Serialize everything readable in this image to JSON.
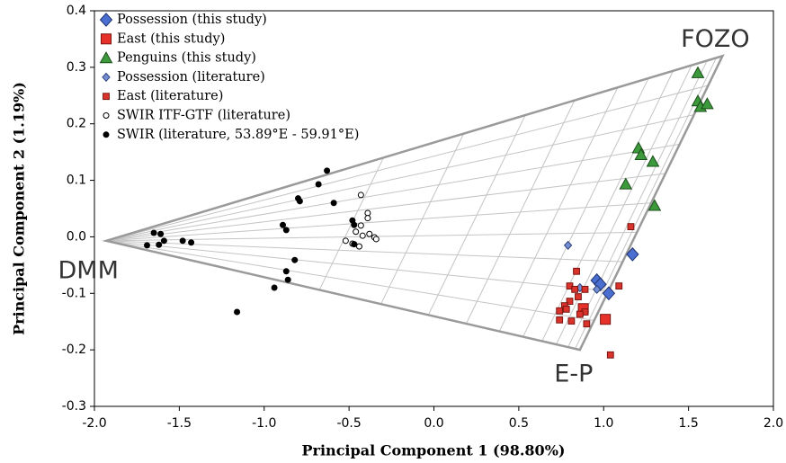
{
  "chart_data": {
    "type": "scatter",
    "xlabel": "Principal Component 1 (98.80%)",
    "ylabel": "Principal Component 2 (1.19%)",
    "xlim": [
      -2.0,
      2.0
    ],
    "ylim": [
      -0.3,
      0.4
    ],
    "xticks": [
      {
        "value": -2.0,
        "label": "-2.0"
      },
      -1.5,
      {
        "value": -1.0,
        "label": "-1.0"
      },
      -0.5,
      {
        "value": 0,
        "label": "0.0"
      },
      0.5,
      {
        "value": 1.0,
        "label": "1.0"
      },
      1.5,
      {
        "value": 2.0,
        "label": "2.0"
      }
    ],
    "yticks": [
      -0.3,
      -0.2,
      -0.1,
      {
        "value": 0,
        "label": "0.0"
      },
      0.1,
      0.2,
      0.3,
      0.4
    ],
    "legend": "upper left",
    "mixing_triangle": {
      "vertices": [
        {
          "label": "DMM",
          "x": -1.93,
          "y": -0.007
        },
        {
          "label": "FOZO",
          "x": 1.7,
          "y": 0.32
        },
        {
          "label": "E-P",
          "x": 0.86,
          "y": -0.2
        }
      ]
    },
    "series": [
      {
        "name": "Possession (this study)",
        "color": "#4a6fd0",
        "edgecolor": "#1c2f6b",
        "marker": "diamond",
        "marker_size": "large",
        "x": [
          0.96,
          0.98,
          1.03,
          1.17
        ],
        "y": [
          -0.077,
          -0.084,
          -0.1,
          -0.031
        ]
      },
      {
        "name": "East (this study)",
        "color": "#e8302a",
        "edgecolor": "#7a1410",
        "marker": "square",
        "marker_size": "large",
        "x": [
          0.88,
          1.01
        ],
        "y": [
          -0.127,
          -0.146
        ]
      },
      {
        "name": "Penguins (this study)",
        "color": "#3c9a3c",
        "edgecolor": "#1a4d1a",
        "marker": "triangle",
        "marker_size": "large",
        "x": [
          1.555,
          1.555,
          1.57,
          1.61,
          1.205,
          1.22,
          1.29,
          1.13,
          1.3
        ],
        "y": [
          0.29,
          0.24,
          0.23,
          0.235,
          0.157,
          0.145,
          0.133,
          0.093,
          0.055
        ]
      },
      {
        "name": "Possession (literature)",
        "color": "#7390d4",
        "edgecolor": "#2d3f7a",
        "marker": "diamond",
        "marker_size": "small",
        "x": [
          0.79,
          0.96,
          0.86
        ],
        "y": [
          -0.015,
          -0.093,
          -0.09
        ]
      },
      {
        "name": "East (literature)",
        "color": "#d9332b",
        "edgecolor": "#7a1410",
        "marker": "square",
        "marker_size": "small",
        "x": [
          1.16,
          0.84,
          0.8,
          0.83,
          0.89,
          0.85,
          0.8,
          1.09,
          0.77,
          0.89,
          0.74,
          0.74,
          0.81,
          0.9,
          1.04,
          0.86,
          0.78
        ],
        "y": [
          0.018,
          -0.061,
          -0.087,
          -0.093,
          -0.093,
          -0.106,
          -0.114,
          -0.087,
          -0.122,
          -0.133,
          -0.131,
          -0.147,
          -0.149,
          -0.154,
          -0.209,
          -0.137,
          -0.128
        ]
      },
      {
        "name": "SWIR ITF-GTF (literature)",
        "color": "#ffffff",
        "edgecolor": "#000000",
        "marker": "circle",
        "marker_size": "small",
        "x": [
          -0.43,
          -0.39,
          -0.39,
          -0.43,
          -0.46,
          -0.42,
          -0.38,
          -0.35,
          -0.52,
          -0.48,
          -0.44,
          -0.34
        ],
        "y": [
          0.074,
          0.042,
          0.033,
          0.02,
          0.009,
          0.002,
          0.005,
          -0.001,
          -0.007,
          -0.012,
          -0.017,
          -0.004
        ]
      },
      {
        "name": "SWIR (literature, 53.89°E - 59.91°E)",
        "color": "#000000",
        "edgecolor": "#000000",
        "marker": "circle",
        "marker_size": "small",
        "x": [
          -0.63,
          -0.68,
          -0.8,
          -0.79,
          -0.59,
          -0.48,
          -0.47,
          -0.89,
          -0.87,
          -1.65,
          -1.61,
          -1.59,
          -1.62,
          -1.69,
          -1.48,
          -1.43,
          -0.82,
          -0.87,
          -0.86,
          -0.94,
          -1.16,
          -0.47
        ],
        "y": [
          0.117,
          0.093,
          0.068,
          0.063,
          0.06,
          0.029,
          0.021,
          0.021,
          0.012,
          0.007,
          0.005,
          -0.007,
          -0.014,
          -0.015,
          -0.007,
          -0.01,
          -0.041,
          -0.061,
          -0.076,
          -0.09,
          -0.133,
          -0.013
        ]
      }
    ]
  }
}
